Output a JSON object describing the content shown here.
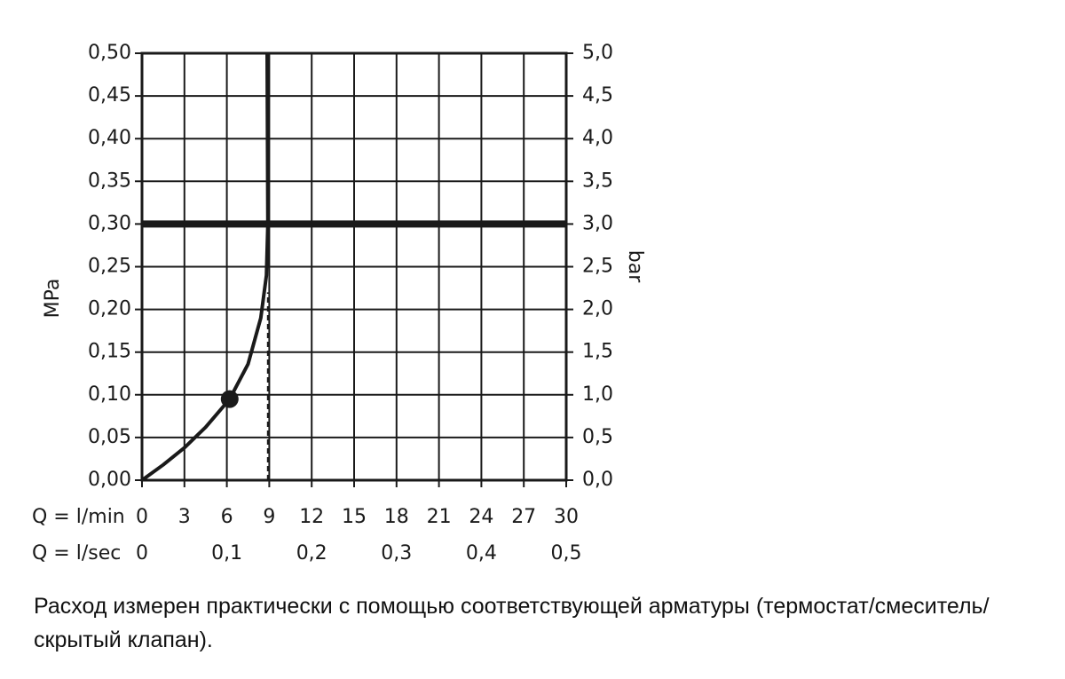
{
  "chart_data": {
    "type": "line",
    "xlabel": "Q = l/min",
    "x2label": "Q = l/sec",
    "ylabel": "MPa",
    "y2label": "bar",
    "xlim": [
      0,
      30
    ],
    "xticks": [
      0,
      3,
      6,
      9,
      12,
      15,
      18,
      21,
      24,
      27,
      30
    ],
    "x2lim": [
      0,
      0.5
    ],
    "x2ticks": [
      0,
      {
        "value": 0.1,
        "label": "0,1"
      },
      {
        "value": 0.2,
        "label": "0,2"
      },
      {
        "value": 0.3,
        "label": "0,3"
      },
      {
        "value": 0.4,
        "label": "0,4"
      },
      {
        "value": 0.5,
        "label": "0,5"
      }
    ],
    "ylim": [
      0,
      0.5
    ],
    "yticks": [
      {
        "value": 0,
        "label": "0,00"
      },
      {
        "value": 0.05,
        "label": "0,05"
      },
      {
        "value": 0.1,
        "label": "0,10"
      },
      {
        "value": 0.15,
        "label": "0,15"
      },
      {
        "value": 0.2,
        "label": "0,20"
      },
      {
        "value": 0.25,
        "label": "0,25"
      },
      {
        "value": 0.3,
        "label": "0,30"
      },
      {
        "value": 0.35,
        "label": "0,35"
      },
      {
        "value": 0.4,
        "label": "0,40"
      },
      {
        "value": 0.45,
        "label": "0,45"
      },
      {
        "value": 0.5,
        "label": "0,50"
      }
    ],
    "y2lim": [
      0,
      5
    ],
    "y2ticks": [
      {
        "value": 0,
        "label": "0,0"
      },
      {
        "value": 0.5,
        "label": "0,5"
      },
      {
        "value": 1,
        "label": "1,0"
      },
      {
        "value": 1.5,
        "label": "1,5"
      },
      {
        "value": 2,
        "label": "2,0"
      },
      {
        "value": 2.5,
        "label": "2,5"
      },
      {
        "value": 3,
        "label": "3,0"
      },
      {
        "value": 3.5,
        "label": "3,5"
      },
      {
        "value": 4,
        "label": "4,0"
      },
      {
        "value": 4.5,
        "label": "4,5"
      },
      {
        "value": 5,
        "label": "5,0"
      }
    ],
    "grid": true,
    "series": [
      {
        "color": "#1a1a1a",
        "x": [
          0,
          1.5,
          3,
          4.5,
          6.2,
          7.5,
          8.4,
          8.8,
          8.9,
          8.85
        ],
        "values": [
          0,
          0.018,
          0.038,
          0.062,
          0.095,
          0.136,
          0.19,
          0.24,
          0.3,
          0.5
        ]
      }
    ],
    "marker": {
      "x": 6.2,
      "y": 0.095
    },
    "hline": 0.3,
    "vline": {
      "x": 8.9,
      "ylim": [
        0,
        0.22
      ]
    },
    "note": "Расход измерен практически с помощью соответствующей арматуры (термостат/смеситель/скрытый клапан)."
  }
}
